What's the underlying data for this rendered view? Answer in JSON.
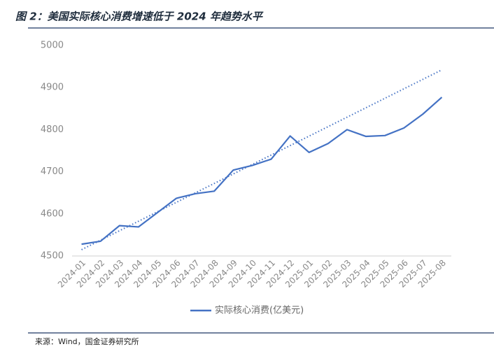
{
  "title": "图 2：美国实际核心消费增速低于 2024 年趋势水平",
  "source": "来源：Wind，国金证券研究所",
  "chart_data": {
    "type": "line",
    "categories": [
      "2024-01",
      "2024-02",
      "2024-03",
      "2024-04",
      "2024-05",
      "2024-06",
      "2024-07",
      "2024-08",
      "2024-09",
      "2024-10",
      "2024-11",
      "2024-12",
      "2025-01",
      "2025-02",
      "2025-03",
      "2025-04",
      "2025-05",
      "2025-06",
      "2025-07",
      "2025-08"
    ],
    "series": [
      {
        "name": "实际核心消费(亿美元)",
        "color": "#4472c4",
        "values": [
          4528,
          4535,
          4572,
          4569,
          4603,
          4637,
          4648,
          4654,
          4704,
          4715,
          4730,
          4785,
          4746,
          4767,
          4800,
          4784,
          4786,
          4804,
          4837,
          4877
        ]
      }
    ],
    "trendline": {
      "color": "#4472c4",
      "values": [
        4515,
        4942
      ]
    },
    "ylim": [
      4500,
      5000
    ],
    "yticks": [
      4500,
      4600,
      4700,
      4800,
      4900,
      5000
    ],
    "grid": false,
    "legend": "bottom"
  }
}
